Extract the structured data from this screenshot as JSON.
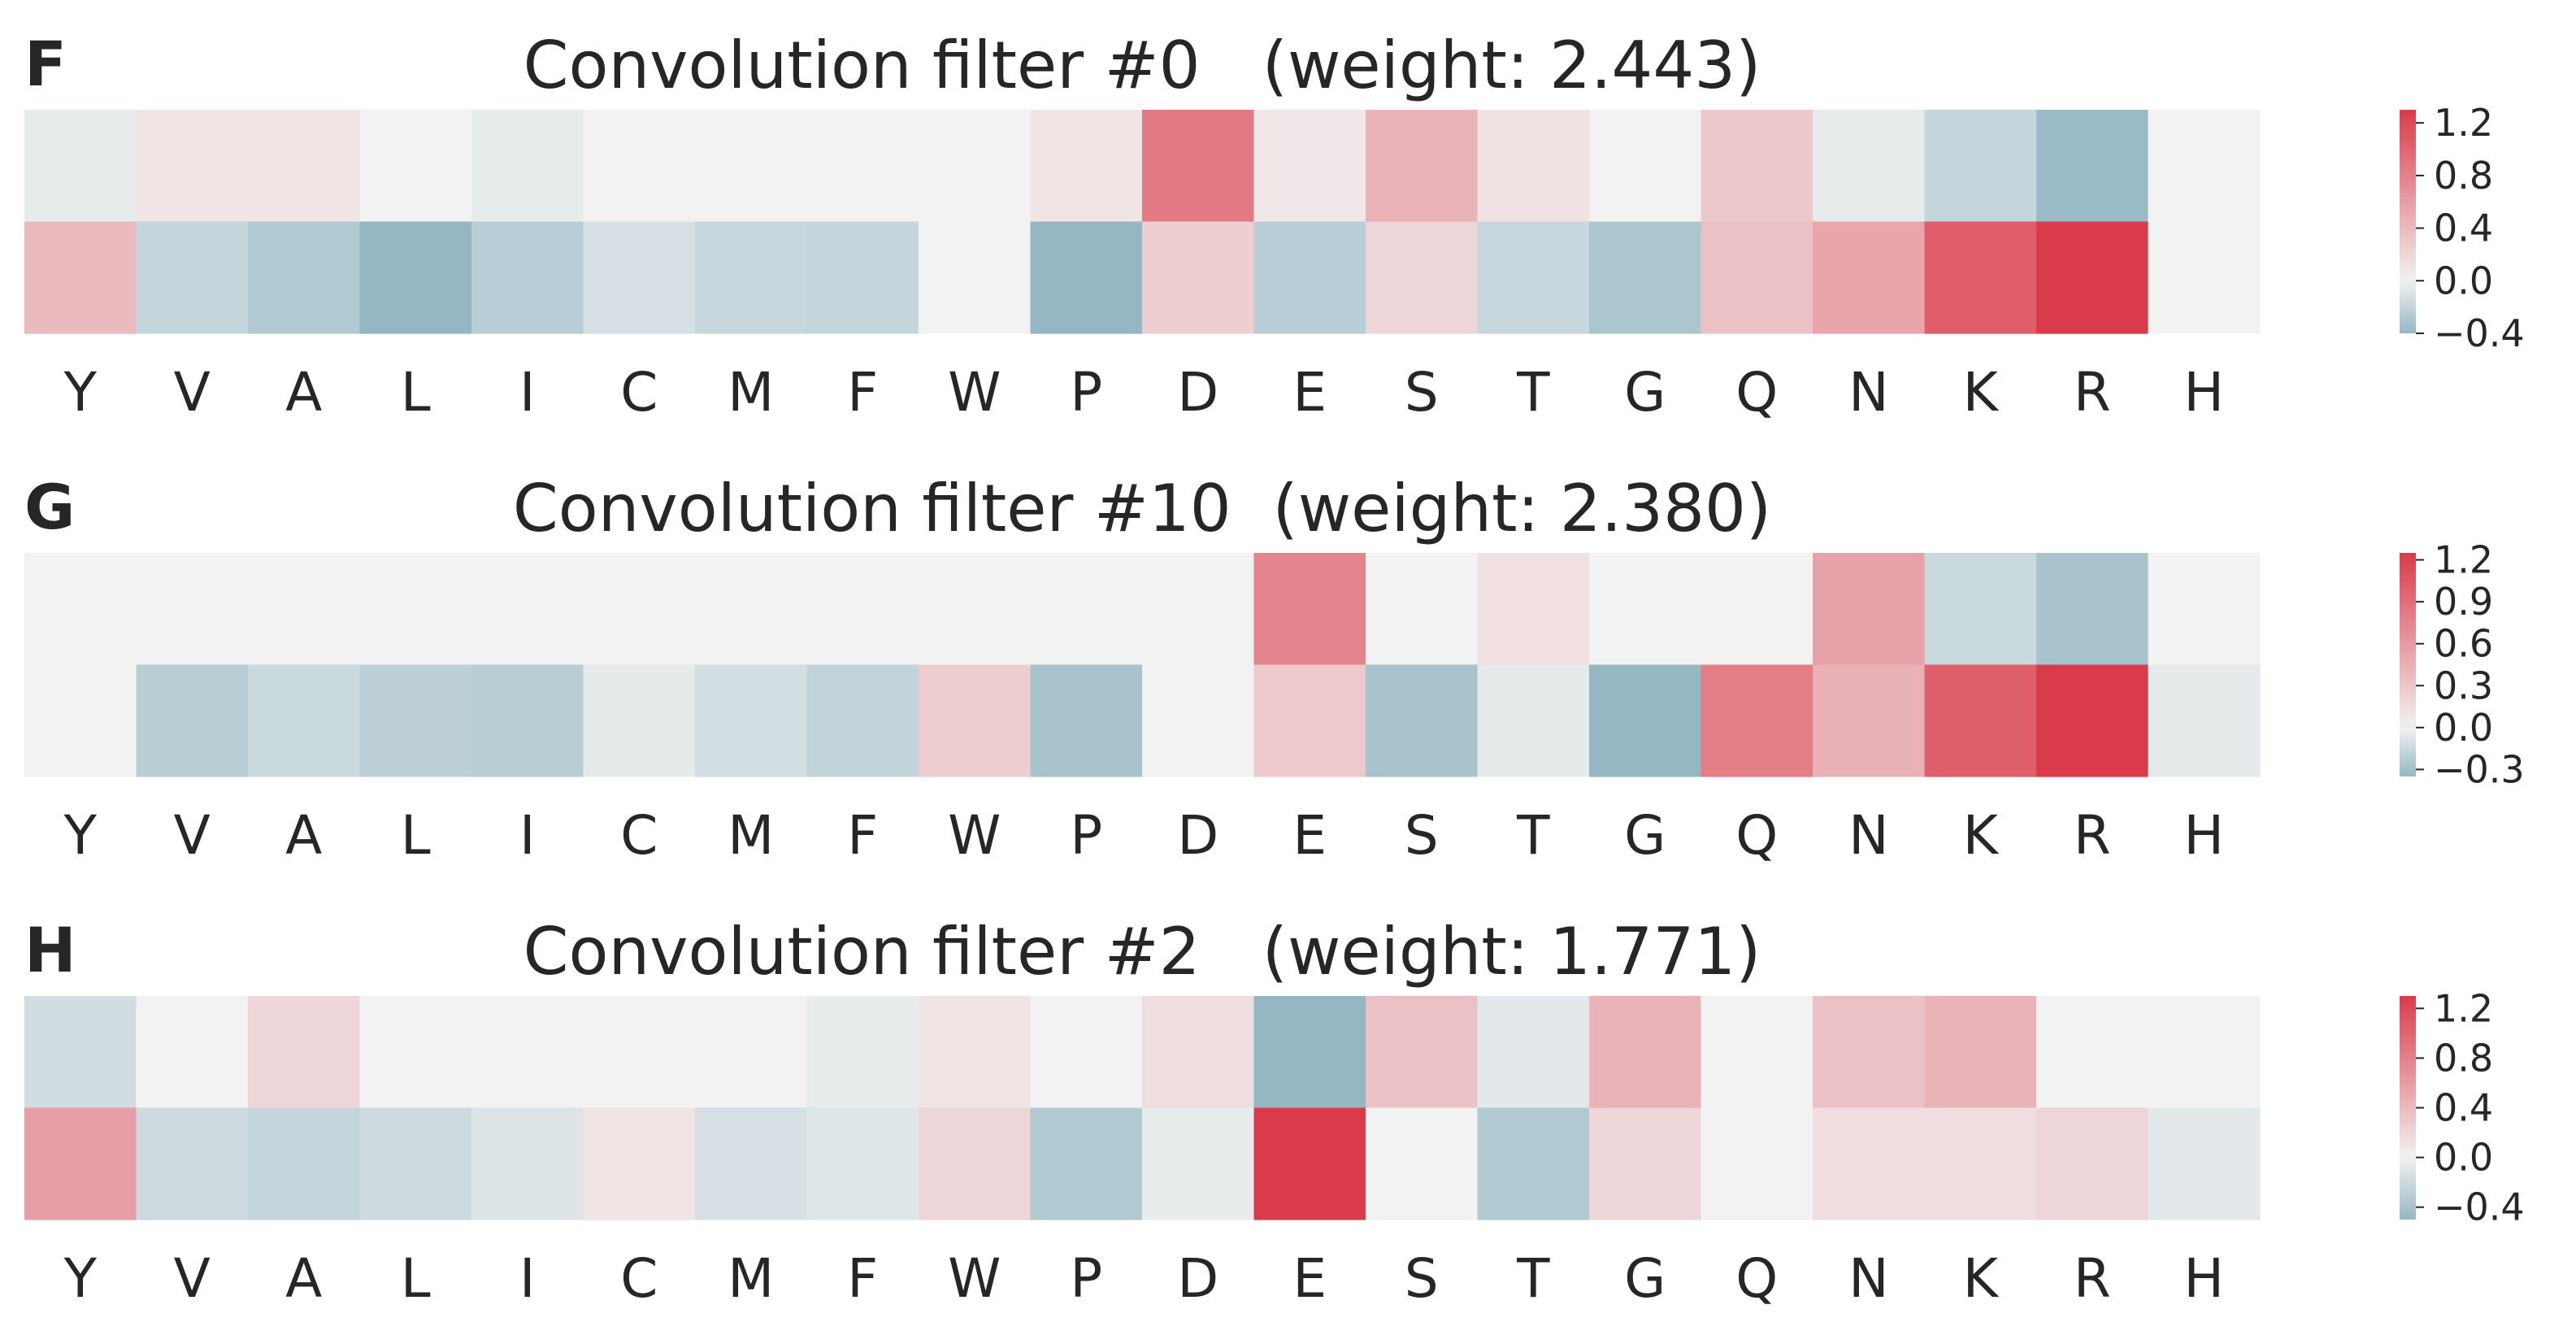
{
  "chart_data": [
    {
      "type": "heatmap",
      "panel": "F",
      "title": "Convolution filter #0   (weight: 2.443)",
      "categories": [
        "Y",
        "V",
        "A",
        "L",
        "I",
        "C",
        "M",
        "F",
        "W",
        "P",
        "D",
        "E",
        "S",
        "T",
        "G",
        "Q",
        "N",
        "K",
        "R",
        "H"
      ],
      "rows": [
        [
          -0.05,
          0.1,
          0.1,
          0.0,
          -0.05,
          0.0,
          0.0,
          0.0,
          0.0,
          0.1,
          0.85,
          0.08,
          0.45,
          0.12,
          0.0,
          0.3,
          -0.05,
          -0.2,
          -0.38,
          0.0
        ],
        [
          0.4,
          -0.2,
          -0.28,
          -0.4,
          -0.25,
          -0.12,
          -0.18,
          -0.2,
          0.0,
          -0.4,
          0.25,
          -0.25,
          0.2,
          -0.18,
          -0.3,
          0.35,
          0.55,
          1.05,
          1.3,
          0.0
        ]
      ],
      "colorbar_ticks": [
        "1.2",
        "0.8",
        "0.4",
        "0.0",
        "−0.4"
      ],
      "vmin": -0.4,
      "vmax": 1.3
    },
    {
      "type": "heatmap",
      "panel": "G",
      "title": "Convolution filter #10  (weight: 2.380)",
      "categories": [
        "Y",
        "V",
        "A",
        "L",
        "I",
        "C",
        "M",
        "F",
        "W",
        "P",
        "D",
        "E",
        "S",
        "T",
        "G",
        "Q",
        "N",
        "K",
        "R",
        "H"
      ],
      "rows": [
        [
          0.0,
          0.0,
          0.0,
          0.0,
          0.0,
          0.0,
          0.0,
          0.0,
          0.0,
          0.0,
          0.0,
          0.75,
          0.0,
          0.12,
          0.0,
          0.0,
          0.55,
          -0.15,
          -0.28,
          0.0
        ],
        [
          0.0,
          -0.22,
          -0.15,
          -0.2,
          -0.22,
          -0.05,
          -0.12,
          -0.18,
          0.25,
          -0.28,
          0.0,
          0.28,
          -0.28,
          -0.05,
          -0.35,
          0.8,
          0.45,
          1.0,
          1.25,
          -0.05
        ]
      ],
      "colorbar_ticks": [
        "1.2",
        "0.9",
        "0.6",
        "0.3",
        "0.0",
        "−0.3"
      ],
      "vmin": -0.35,
      "vmax": 1.25
    },
    {
      "type": "heatmap",
      "panel": "H",
      "title": "Convolution filter #2   (weight: 1.771)",
      "categories": [
        "Y",
        "V",
        "A",
        "L",
        "I",
        "C",
        "M",
        "F",
        "W",
        "P",
        "D",
        "E",
        "S",
        "T",
        "G",
        "Q",
        "N",
        "K",
        "R",
        "H"
      ],
      "rows": [
        [
          -0.18,
          0.0,
          0.2,
          0.0,
          0.0,
          0.0,
          0.0,
          -0.05,
          0.1,
          0.0,
          0.15,
          -0.5,
          0.35,
          -0.08,
          0.45,
          0.0,
          0.35,
          0.45,
          0.0,
          0.0
        ],
        [
          0.6,
          -0.2,
          -0.25,
          -0.2,
          -0.12,
          0.1,
          -0.15,
          -0.1,
          0.2,
          -0.35,
          -0.05,
          1.3,
          0.0,
          -0.35,
          0.2,
          0.0,
          0.15,
          0.15,
          0.2,
          -0.08
        ]
      ],
      "colorbar_ticks": [
        "1.2",
        "0.8",
        "0.4",
        "0.0",
        "−0.4"
      ],
      "vmin": -0.5,
      "vmax": 1.3
    }
  ],
  "colors": {
    "positive": "#da3b4a",
    "neutral": "#f2f2f2",
    "negative": "#95b7c3",
    "text": "#262626"
  }
}
